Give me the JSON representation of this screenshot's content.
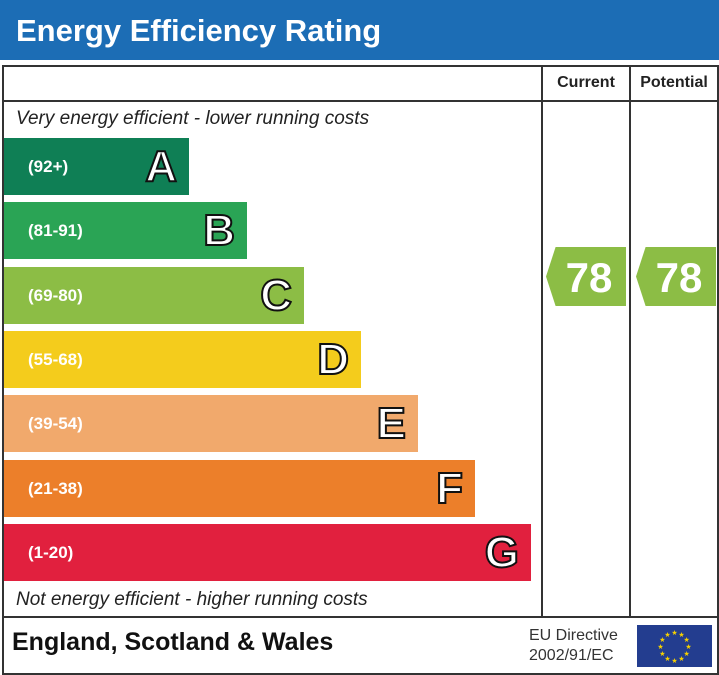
{
  "title": "Energy Efficiency Rating",
  "columns": {
    "current": "Current",
    "potential": "Potential"
  },
  "captions": {
    "top": "Very energy efficient - lower running costs",
    "bottom": "Not energy efficient - higher running costs"
  },
  "footer": {
    "region": "England, Scotland & Wales",
    "directive_line1": "EU Directive",
    "directive_line2": "2002/91/EC",
    "flag": "eu-flag-icon"
  },
  "chart_data": {
    "type": "bar",
    "bands": [
      {
        "letter": "A",
        "range": "(92+)",
        "color": "#0f7f55"
      },
      {
        "letter": "B",
        "range": "(81-91)",
        "color": "#2aa455"
      },
      {
        "letter": "C",
        "range": "(69-80)",
        "color": "#8cbd45"
      },
      {
        "letter": "D",
        "range": "(55-68)",
        "color": "#f4cc1c"
      },
      {
        "letter": "E",
        "range": "(39-54)",
        "color": "#f1a96c"
      },
      {
        "letter": "F",
        "range": "(21-38)",
        "color": "#ec7f2a"
      },
      {
        "letter": "G",
        "range": "(1-20)",
        "color": "#e1203e"
      }
    ],
    "current": {
      "value": "78",
      "band": "C",
      "color": "#8cbd45"
    },
    "potential": {
      "value": "78",
      "band": "C",
      "color": "#8cbd45"
    }
  }
}
